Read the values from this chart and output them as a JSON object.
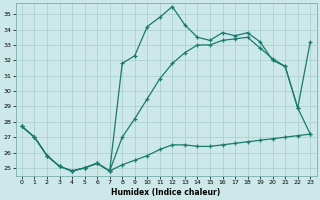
{
  "xlabel": "Humidex (Indice chaleur)",
  "xlim": [
    -0.5,
    23.5
  ],
  "ylim": [
    24.5,
    35.7
  ],
  "yticks": [
    25,
    26,
    27,
    28,
    29,
    30,
    31,
    32,
    33,
    34,
    35
  ],
  "xticks": [
    0,
    1,
    2,
    3,
    4,
    5,
    6,
    7,
    8,
    9,
    10,
    11,
    12,
    13,
    14,
    15,
    16,
    17,
    18,
    19,
    20,
    21,
    22,
    23
  ],
  "line_color": "#1a7a6e",
  "bg_color": "#cde8e8",
  "grid_color": "#a8cccc",
  "line1_x": [
    0,
    1,
    2,
    3,
    4,
    5,
    6,
    7,
    8,
    9,
    10,
    11,
    12,
    13,
    14,
    15,
    16,
    17,
    18,
    19,
    20,
    21,
    22,
    23
  ],
  "line1_y": [
    27.7,
    27.0,
    25.8,
    25.1,
    24.8,
    25.0,
    25.3,
    24.8,
    31.8,
    32.3,
    34.2,
    34.8,
    35.5,
    34.3,
    33.5,
    33.3,
    33.8,
    33.6,
    33.8,
    33.2,
    32.0,
    31.6,
    28.9,
    33.2
  ],
  "line2_x": [
    0,
    1,
    2,
    3,
    4,
    5,
    6,
    7,
    8,
    9,
    10,
    11,
    12,
    13,
    14,
    15,
    16,
    17,
    18,
    19,
    20,
    21,
    22,
    23
  ],
  "line2_y": [
    27.7,
    27.0,
    25.8,
    25.1,
    24.8,
    25.0,
    25.3,
    24.8,
    27.0,
    28.2,
    29.5,
    30.8,
    31.8,
    32.5,
    33.0,
    33.0,
    33.3,
    33.4,
    33.5,
    32.8,
    32.1,
    31.6,
    28.9,
    27.2
  ],
  "line3_x": [
    0,
    1,
    2,
    3,
    4,
    5,
    6,
    7,
    8,
    9,
    10,
    11,
    12,
    13,
    14,
    15,
    16,
    17,
    18,
    19,
    20,
    21,
    22,
    23
  ],
  "line3_y": [
    27.7,
    27.0,
    25.8,
    25.1,
    24.8,
    25.0,
    25.3,
    24.8,
    25.2,
    25.5,
    25.8,
    26.2,
    26.5,
    26.5,
    26.4,
    26.4,
    26.5,
    26.6,
    26.7,
    26.8,
    26.9,
    27.0,
    27.1,
    27.2
  ]
}
